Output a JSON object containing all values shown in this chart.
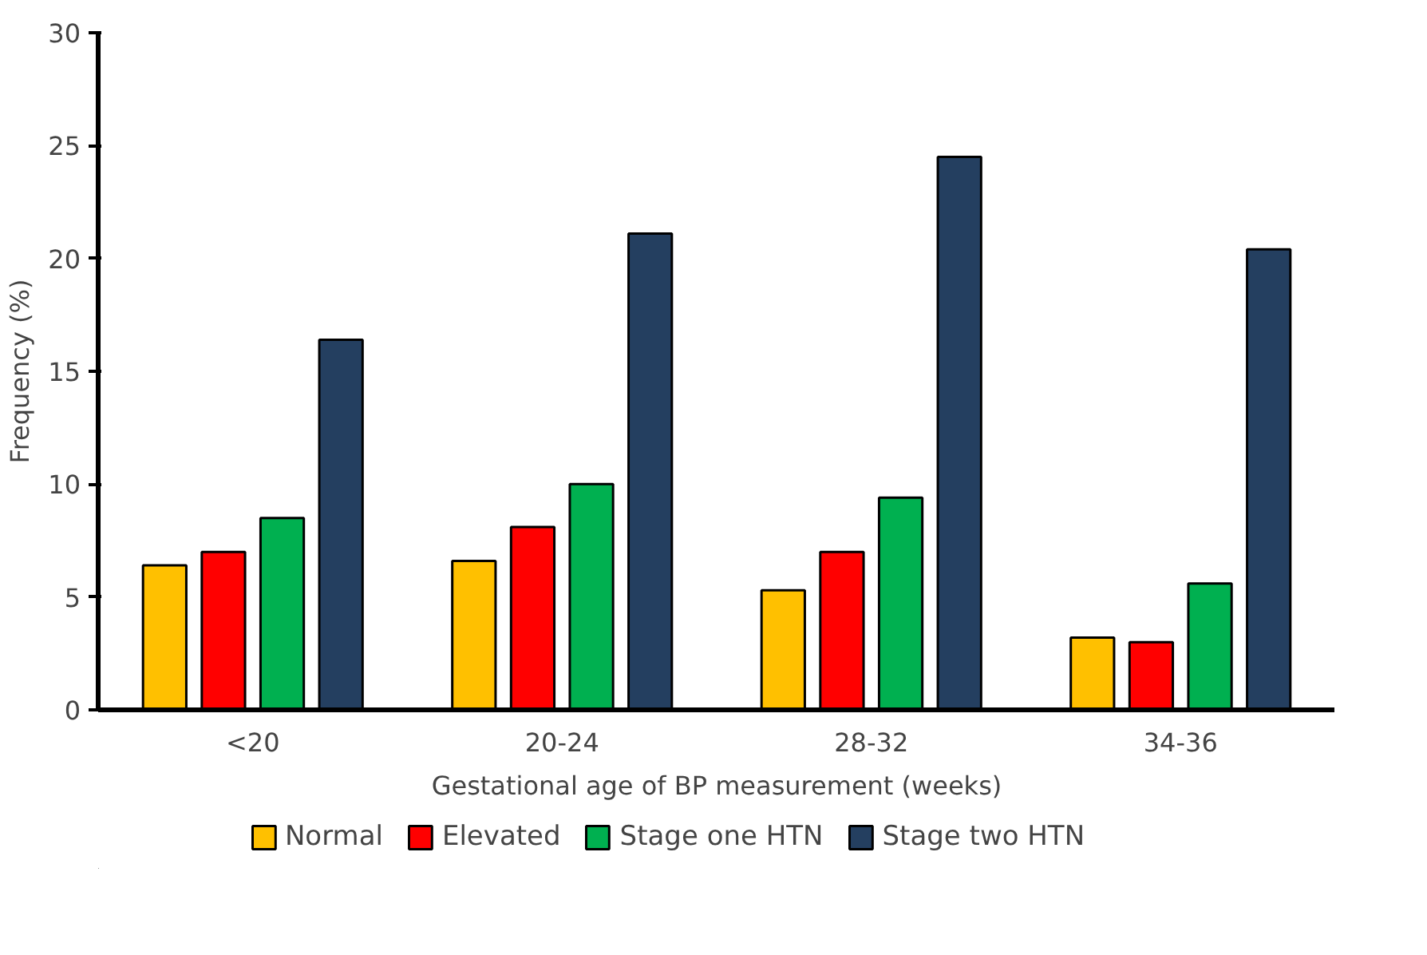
{
  "chart_data": {
    "type": "bar",
    "xlabel": "Gestational age of BP measurement (weeks)",
    "ylabel": "Frequency (%)",
    "categories": [
      "<20",
      "20-24",
      "28-32",
      "34-36"
    ],
    "series": [
      {
        "name": "Normal",
        "color": "#ffc000",
        "values": [
          6.4,
          6.6,
          5.3,
          3.2
        ]
      },
      {
        "name": "Elevated",
        "color": "#ff0000",
        "values": [
          7.0,
          8.1,
          7.0,
          3.0
        ]
      },
      {
        "name": "Stage one HTN",
        "color": "#00b050",
        "values": [
          8.5,
          10.0,
          9.4,
          5.6
        ]
      },
      {
        "name": "Stage two HTN",
        "color": "#243f60",
        "values": [
          16.4,
          21.1,
          24.5,
          20.4
        ]
      }
    ],
    "ylim": [
      0,
      30
    ],
    "yticks": [
      0,
      5,
      10,
      15,
      20,
      25,
      30
    ],
    "grid": false,
    "legend": "bottom"
  }
}
